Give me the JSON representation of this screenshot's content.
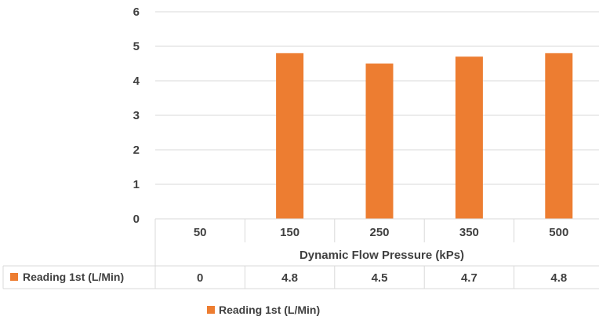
{
  "chart_data": {
    "type": "bar",
    "categories": [
      "50",
      "150",
      "250",
      "350",
      "500"
    ],
    "series": [
      {
        "name": "Reading 1st (L/Min)",
        "values": [
          0,
          4.8,
          4.5,
          4.7,
          4.8
        ],
        "color": "#ED7D31"
      }
    ],
    "data_table_values": [
      "0",
      "4.8",
      "4.5",
      "4.7",
      "4.8"
    ],
    "y_ticks": [
      "0",
      "1",
      "2",
      "3",
      "4",
      "5",
      "6"
    ],
    "xlabel": "Dynamic Flow Pressure (kPs)",
    "ylabel": "",
    "ylim": [
      0,
      6
    ],
    "grid": true,
    "legend": {
      "position": "bottom",
      "entries": [
        "Reading 1st (L/Min)"
      ]
    },
    "data_table": true
  }
}
